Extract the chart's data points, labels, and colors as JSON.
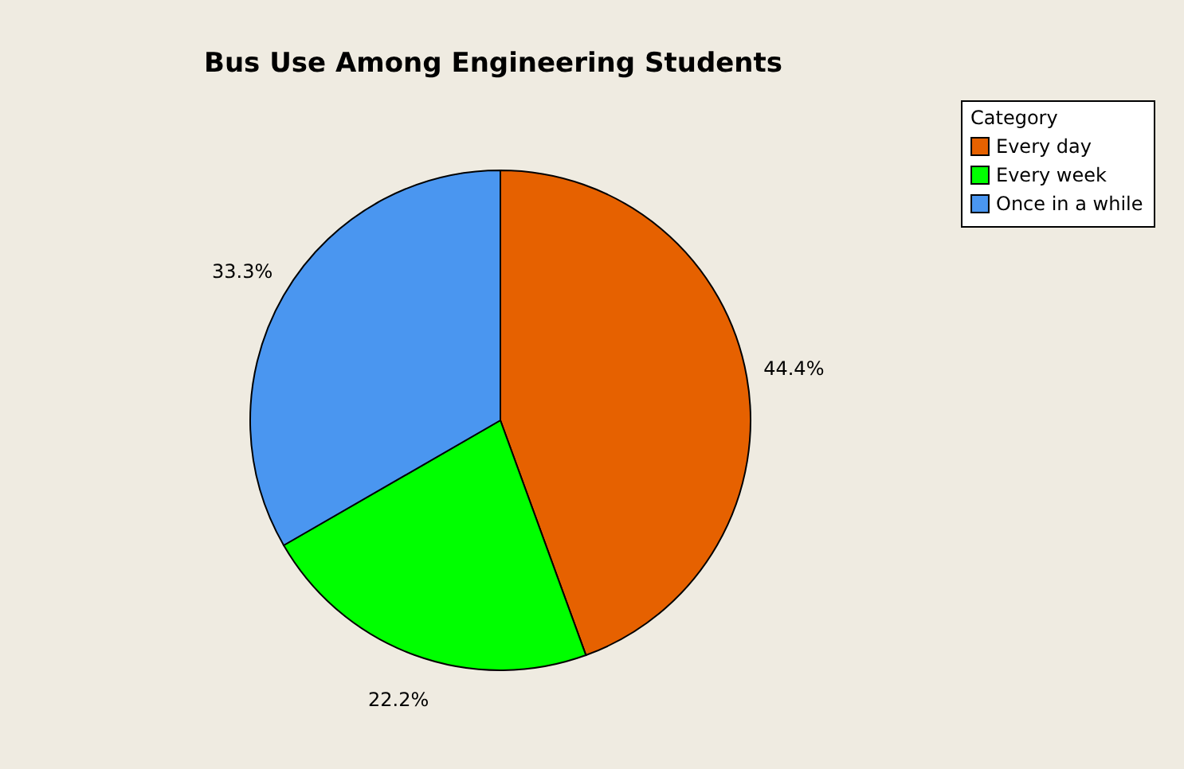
{
  "chart_data": {
    "type": "pie",
    "title": "Bus Use Among Engineering Students",
    "legend_title": "Category",
    "categories": [
      "Every day",
      "Every week",
      "Once in a while"
    ],
    "values": [
      44.4,
      22.2,
      33.3
    ],
    "value_labels": [
      "44.4%",
      "22.2%",
      "33.3%"
    ],
    "colors": [
      "#e66100",
      "#00ff00",
      "#4a96f0"
    ],
    "legend": "top right"
  }
}
